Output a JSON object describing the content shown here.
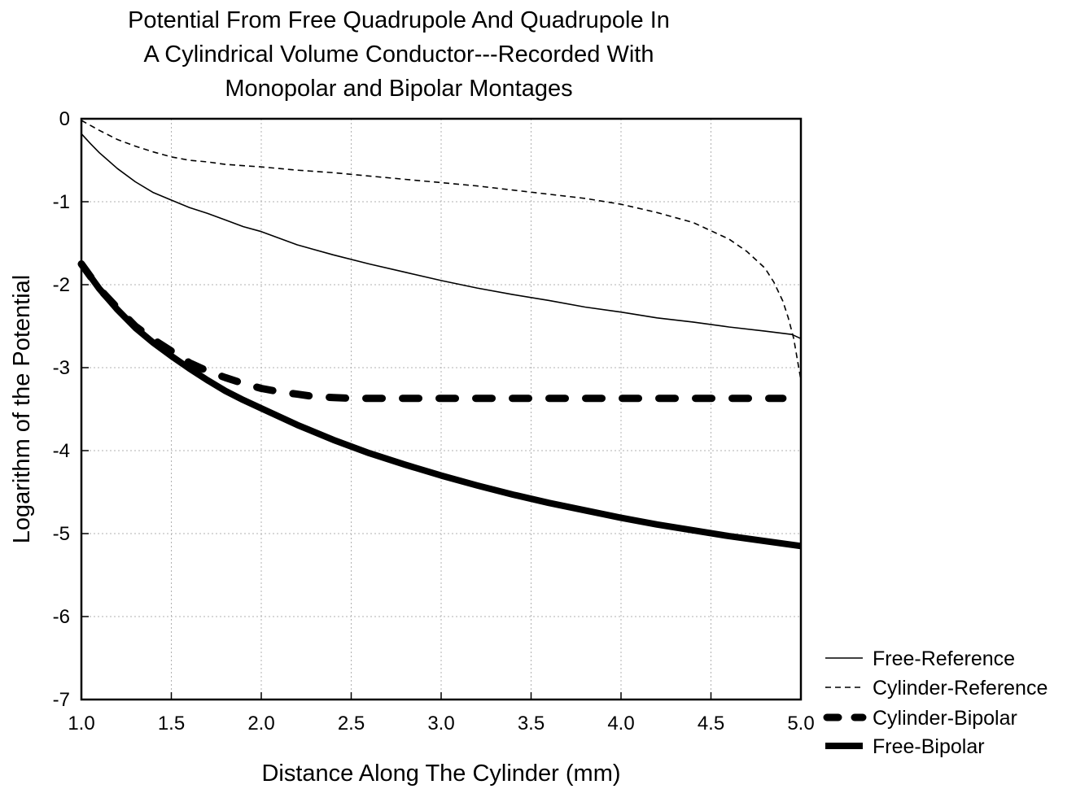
{
  "chart_data": {
    "type": "line",
    "title_lines": [
      "Potential From Free Quadrupole And Quadrupole In",
      "A Cylindrical Volume Conductor---Recorded With",
      "Monopolar and Bipolar Montages"
    ],
    "xlabel": "Distance Along The Cylinder (mm)",
    "ylabel": "Logarithm of the Potential",
    "xlim": [
      1.0,
      5.0
    ],
    "ylim": [
      -7,
      0
    ],
    "xticks": [
      "1.0",
      "1.5",
      "2.0",
      "2.5",
      "3.0",
      "3.5",
      "4.0",
      "4.5",
      "5.0"
    ],
    "yticks": [
      "0",
      "-1",
      "-2",
      "-3",
      "-4",
      "-5",
      "-6",
      "-7"
    ],
    "grid": true,
    "legend_position": "bottom-right outside",
    "series": [
      {
        "name": "Free-Reference",
        "style": "thin-solid",
        "x": [
          1.0,
          1.05,
          1.1,
          1.2,
          1.3,
          1.4,
          1.5,
          1.6,
          1.7,
          1.8,
          1.9,
          2.0,
          2.2,
          2.4,
          2.6,
          2.8,
          3.0,
          3.2,
          3.4,
          3.6,
          3.8,
          4.0,
          4.2,
          4.4,
          4.6,
          4.8,
          4.95,
          5.0
        ],
        "y": [
          -0.18,
          -0.3,
          -0.41,
          -0.6,
          -0.76,
          -0.89,
          -0.98,
          -1.07,
          -1.14,
          -1.22,
          -1.3,
          -1.36,
          -1.52,
          -1.64,
          -1.75,
          -1.85,
          -1.95,
          -2.04,
          -2.12,
          -2.19,
          -2.27,
          -2.33,
          -2.4,
          -2.45,
          -2.51,
          -2.56,
          -2.6,
          -2.65
        ]
      },
      {
        "name": "Cylinder-Reference",
        "style": "thin-dashed",
        "x": [
          1.0,
          1.1,
          1.2,
          1.3,
          1.4,
          1.5,
          1.6,
          1.7,
          1.8,
          2.0,
          2.2,
          2.4,
          2.6,
          2.8,
          3.0,
          3.2,
          3.4,
          3.6,
          3.8,
          4.0,
          4.2,
          4.4,
          4.6,
          4.7,
          4.8,
          4.85,
          4.9,
          4.93,
          4.96,
          4.98,
          5.0
        ],
        "y": [
          -0.02,
          -0.14,
          -0.25,
          -0.33,
          -0.4,
          -0.46,
          -0.5,
          -0.52,
          -0.55,
          -0.58,
          -0.62,
          -0.65,
          -0.69,
          -0.73,
          -0.77,
          -0.81,
          -0.86,
          -0.91,
          -0.96,
          -1.03,
          -1.13,
          -1.25,
          -1.45,
          -1.6,
          -1.8,
          -1.97,
          -2.2,
          -2.4,
          -2.65,
          -2.9,
          -3.15
        ]
      },
      {
        "name": "Cylinder-Bipolar",
        "style": "thick-dashed",
        "x": [
          1.0,
          1.1,
          1.2,
          1.3,
          1.4,
          1.5,
          1.6,
          1.7,
          1.8,
          1.9,
          2.0,
          2.1,
          2.2,
          2.3,
          2.4,
          2.5,
          2.7,
          3.0,
          3.5,
          4.0,
          4.5,
          4.9
        ],
        "y": [
          -1.75,
          -2.05,
          -2.28,
          -2.5,
          -2.66,
          -2.8,
          -2.94,
          -3.04,
          -3.12,
          -3.19,
          -3.25,
          -3.29,
          -3.32,
          -3.35,
          -3.36,
          -3.37,
          -3.37,
          -3.37,
          -3.37,
          -3.37,
          -3.37,
          -3.37
        ]
      },
      {
        "name": "Free-Bipolar",
        "style": "thick-solid",
        "x": [
          1.0,
          1.1,
          1.2,
          1.3,
          1.4,
          1.5,
          1.6,
          1.7,
          1.8,
          1.9,
          2.0,
          2.2,
          2.4,
          2.6,
          2.8,
          3.0,
          3.2,
          3.4,
          3.6,
          3.8,
          4.0,
          4.2,
          4.4,
          4.6,
          4.8,
          5.0
        ],
        "y": [
          -1.75,
          -2.05,
          -2.3,
          -2.52,
          -2.7,
          -2.86,
          -3.01,
          -3.15,
          -3.28,
          -3.39,
          -3.49,
          -3.69,
          -3.87,
          -4.03,
          -4.17,
          -4.3,
          -4.42,
          -4.53,
          -4.63,
          -4.72,
          -4.81,
          -4.89,
          -4.96,
          -5.03,
          -5.09,
          -5.15
        ]
      }
    ]
  }
}
